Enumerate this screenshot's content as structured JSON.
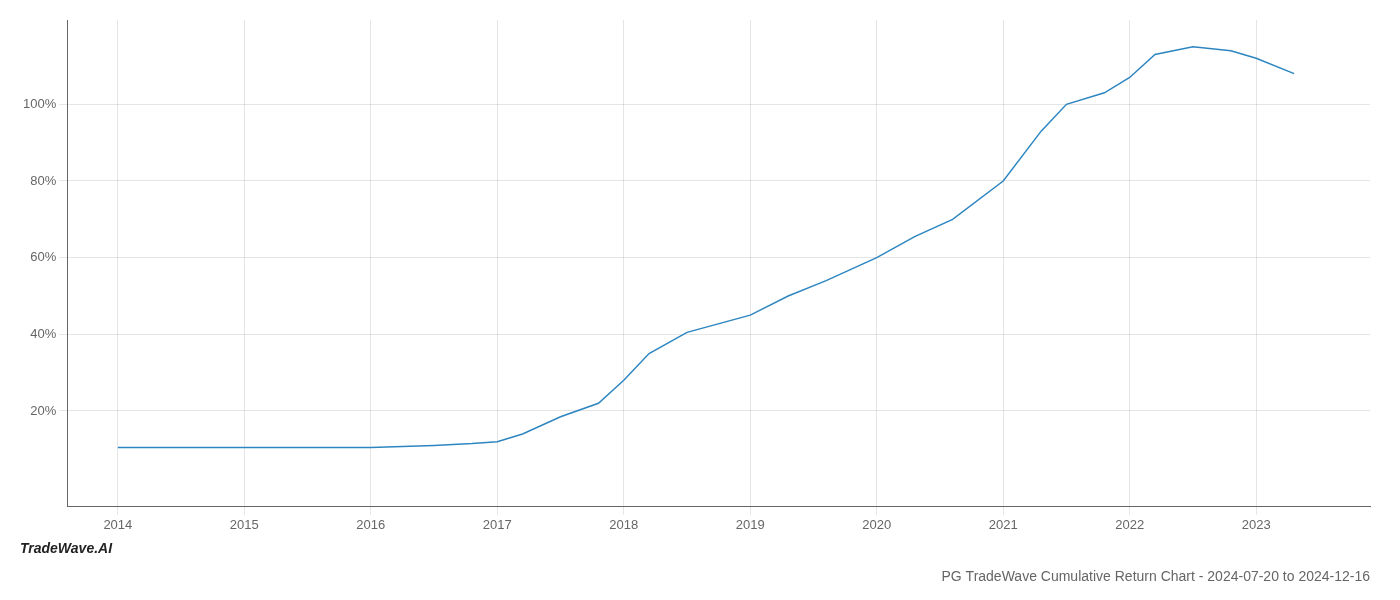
{
  "chart_data": {
    "type": "line",
    "title": "PG TradeWave Cumulative Return Chart - 2024-07-20 to 2024-12-16",
    "annotations": [
      "TradeWave.AI"
    ],
    "x": [
      2014.0,
      2014.5,
      2015.0,
      2015.5,
      2016.0,
      2016.5,
      2016.8,
      2017.0,
      2017.2,
      2017.5,
      2017.8,
      2018.0,
      2018.2,
      2018.5,
      2019.0,
      2019.3,
      2019.6,
      2020.0,
      2020.3,
      2020.6,
      2021.0,
      2021.3,
      2021.5,
      2021.8,
      2022.0,
      2022.2,
      2022.5,
      2022.8,
      2023.0,
      2023.3
    ],
    "values": [
      10.5,
      10.5,
      10.5,
      10.5,
      10.5,
      11.0,
      11.5,
      12.0,
      14.0,
      18.5,
      22.0,
      28.0,
      35.0,
      40.5,
      45.0,
      50.0,
      54.0,
      60.0,
      65.5,
      70.0,
      80.0,
      93.0,
      100.0,
      103.0,
      107.0,
      113.0,
      115.0,
      114.0,
      112.0,
      108.0
    ],
    "color": "#2e86c1",
    "xlim": [
      2013.6,
      2023.9
    ],
    "xticks": [
      2014,
      2015,
      2016,
      2017,
      2018,
      2019,
      2020,
      2021,
      2022,
      2023
    ],
    "ylim": [
      -5,
      122
    ],
    "yticks": [
      {
        "value": 20,
        "label": "20%"
      },
      {
        "value": 40,
        "label": "40%"
      },
      {
        "value": 60,
        "label": "60%"
      },
      {
        "value": 80,
        "label": "80%"
      },
      {
        "value": 100,
        "label": "100%"
      }
    ],
    "grid": true
  }
}
